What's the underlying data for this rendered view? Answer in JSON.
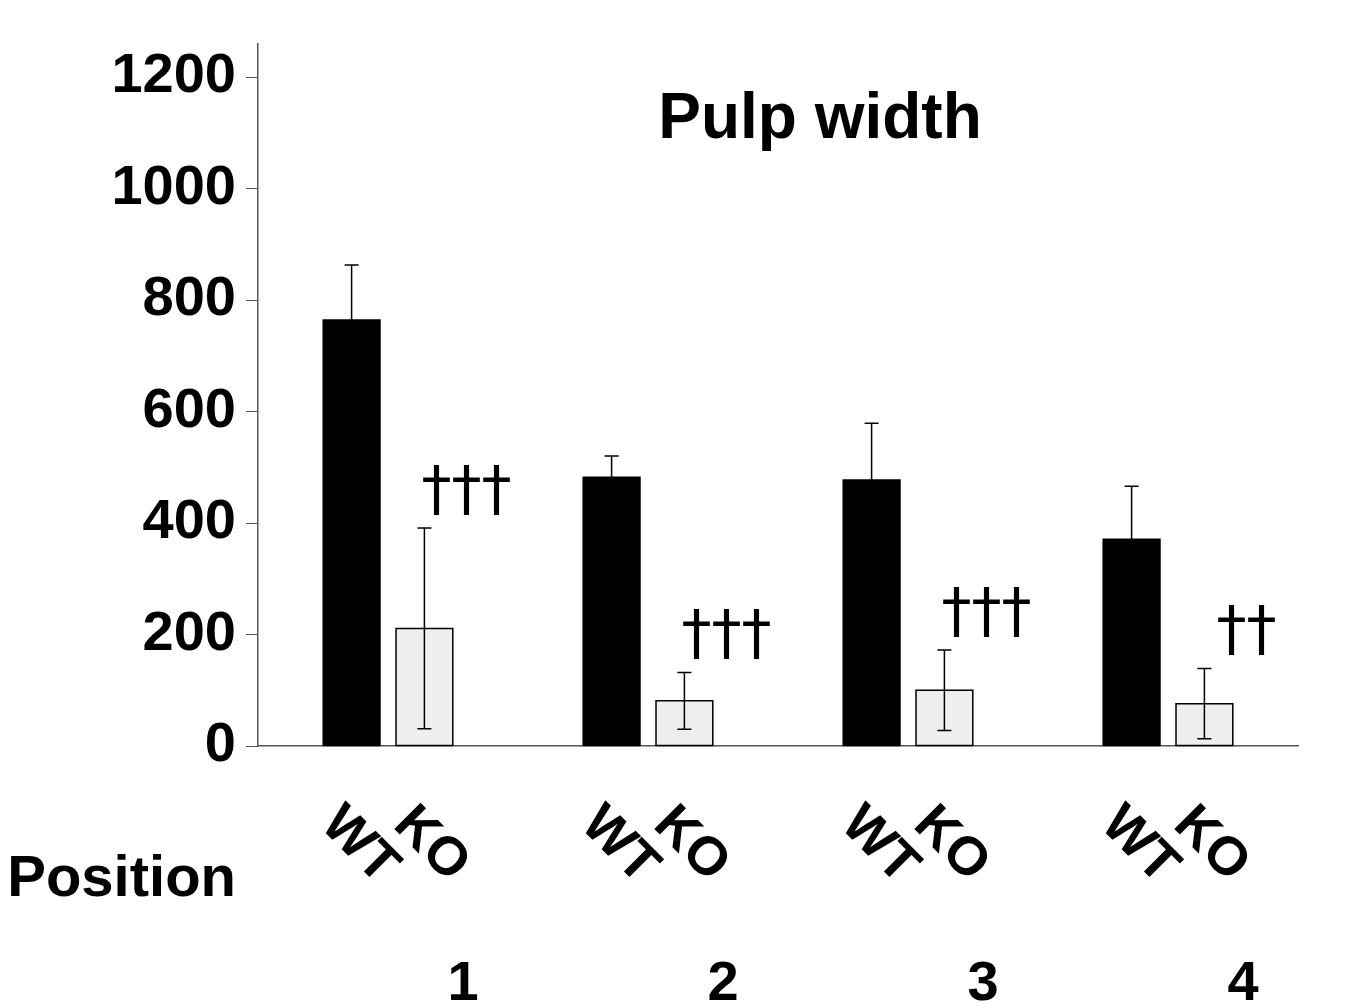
{
  "chart_data": {
    "type": "bar",
    "title": "Pulp width",
    "xlabel": "Position",
    "categories": [
      "1",
      "2",
      "3",
      "4"
    ],
    "series": [
      {
        "name": "WT",
        "color": "#000000",
        "values": [
          764,
          482,
          477,
          371
        ],
        "errors": [
          99,
          38,
          102,
          95
        ]
      },
      {
        "name": "KO",
        "color": "#eeeeee",
        "values": [
          211,
          81,
          100,
          76
        ],
        "errors": [
          180,
          51,
          72,
          63
        ]
      }
    ],
    "annotations": [
      "†††",
      "†††",
      "†††",
      "††"
    ],
    "ylim": [
      0,
      1260
    ],
    "yticks": [
      0,
      200,
      400,
      600,
      800,
      1000,
      1200
    ],
    "grid": false
  }
}
